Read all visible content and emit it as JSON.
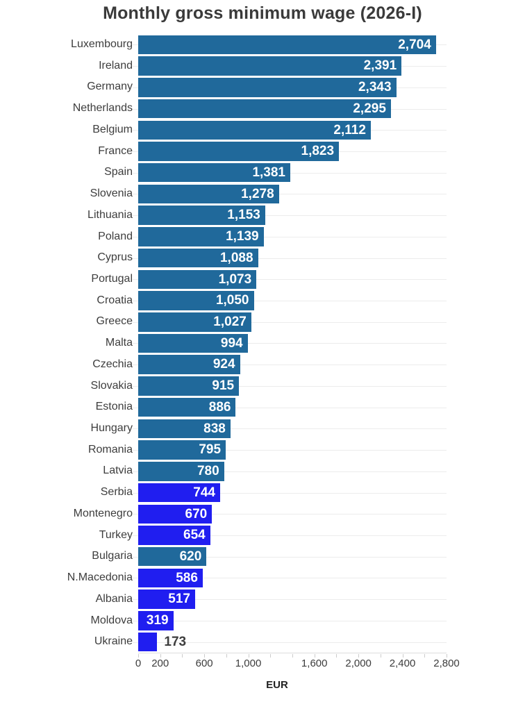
{
  "chart_data": {
    "type": "bar",
    "orientation": "horizontal",
    "title": "Monthly gross minimum wage (2026-I)",
    "xlabel": "EUR",
    "xlim": [
      0,
      2800
    ],
    "x_tick_step": 200,
    "grid": "horizontal-row-lines",
    "legend": "none",
    "x_tick_labels": [
      {
        "value": 0,
        "label": "0"
      },
      {
        "value": 200,
        "label": "200"
      },
      {
        "value": 600,
        "label": "600"
      },
      {
        "value": 1000,
        "label": "1,000"
      },
      {
        "value": 1600,
        "label": "1,600"
      },
      {
        "value": 2000,
        "label": "2,000"
      },
      {
        "value": 2400,
        "label": "2,400"
      },
      {
        "value": 2800,
        "label": "2,800"
      }
    ],
    "colors": {
      "teal_bar": "#20699b",
      "blue_bar": "#201ef0",
      "value_label_inside": "#ffffff",
      "value_label_outside": "#3d3d3d",
      "country_label": "#3d3d3d",
      "title_text": "#3a3a3a",
      "row_line": "#ececec",
      "axis_line": "#dcdcdc"
    },
    "bars": [
      {
        "country": "Luxembourg",
        "value": 2704,
        "label": "2,704",
        "group": "teal_bar"
      },
      {
        "country": "Ireland",
        "value": 2391,
        "label": "2,391",
        "group": "teal_bar"
      },
      {
        "country": "Germany",
        "value": 2343,
        "label": "2,343",
        "group": "teal_bar"
      },
      {
        "country": "Netherlands",
        "value": 2295,
        "label": "2,295",
        "group": "teal_bar"
      },
      {
        "country": "Belgium",
        "value": 2112,
        "label": "2,112",
        "group": "teal_bar"
      },
      {
        "country": "France",
        "value": 1823,
        "label": "1,823",
        "group": "teal_bar"
      },
      {
        "country": "Spain",
        "value": 1381,
        "label": "1,381",
        "group": "teal_bar"
      },
      {
        "country": "Slovenia",
        "value": 1278,
        "label": "1,278",
        "group": "teal_bar"
      },
      {
        "country": "Lithuania",
        "value": 1153,
        "label": "1,153",
        "group": "teal_bar"
      },
      {
        "country": "Poland",
        "value": 1139,
        "label": "1,139",
        "group": "teal_bar"
      },
      {
        "country": "Cyprus",
        "value": 1088,
        "label": "1,088",
        "group": "teal_bar"
      },
      {
        "country": "Portugal",
        "value": 1073,
        "label": "1,073",
        "group": "teal_bar"
      },
      {
        "country": "Croatia",
        "value": 1050,
        "label": "1,050",
        "group": "teal_bar"
      },
      {
        "country": "Greece",
        "value": 1027,
        "label": "1,027",
        "group": "teal_bar"
      },
      {
        "country": "Malta",
        "value": 994,
        "label": "994",
        "group": "teal_bar"
      },
      {
        "country": "Czechia",
        "value": 924,
        "label": "924",
        "group": "teal_bar"
      },
      {
        "country": "Slovakia",
        "value": 915,
        "label": "915",
        "group": "teal_bar"
      },
      {
        "country": "Estonia",
        "value": 886,
        "label": "886",
        "group": "teal_bar"
      },
      {
        "country": "Hungary",
        "value": 838,
        "label": "838",
        "group": "teal_bar"
      },
      {
        "country": "Romania",
        "value": 795,
        "label": "795",
        "group": "teal_bar"
      },
      {
        "country": "Latvia",
        "value": 780,
        "label": "780",
        "group": "teal_bar"
      },
      {
        "country": "Serbia",
        "value": 744,
        "label": "744",
        "group": "blue_bar"
      },
      {
        "country": "Montenegro",
        "value": 670,
        "label": "670",
        "group": "blue_bar"
      },
      {
        "country": "Turkey",
        "value": 654,
        "label": "654",
        "group": "blue_bar"
      },
      {
        "country": "Bulgaria",
        "value": 620,
        "label": "620",
        "group": "teal_bar"
      },
      {
        "country": "N.Macedonia",
        "value": 586,
        "label": "586",
        "group": "blue_bar"
      },
      {
        "country": "Albania",
        "value": 517,
        "label": "517",
        "group": "blue_bar"
      },
      {
        "country": "Moldova",
        "value": 319,
        "label": "319",
        "group": "blue_bar"
      },
      {
        "country": "Ukraine",
        "value": 173,
        "label": "173",
        "group": "blue_bar"
      }
    ]
  }
}
